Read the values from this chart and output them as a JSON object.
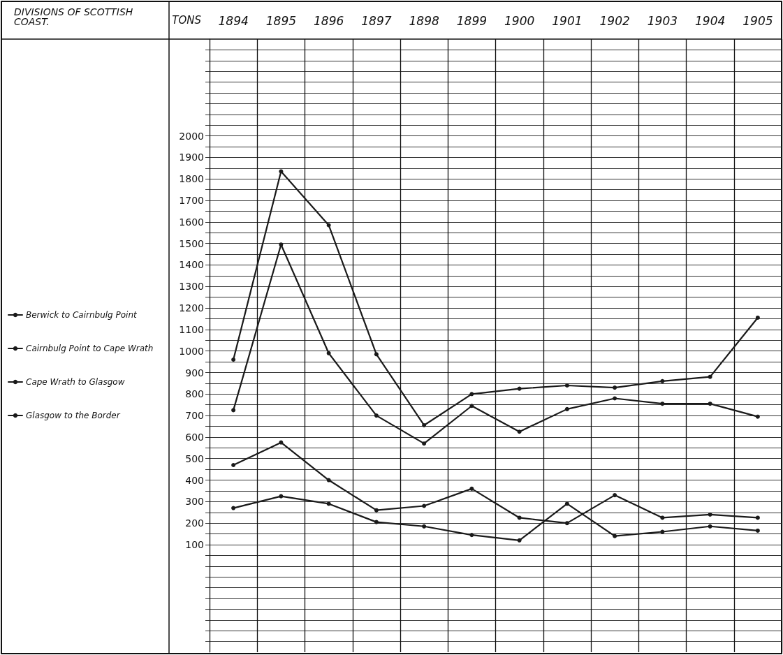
{
  "chart_data": {
    "type": "line",
    "legend_title": "DIVISIONS OF SCOTTISH COAST.",
    "ylabel": "TONS",
    "categories": [
      "1894",
      "1895",
      "1896",
      "1897",
      "1898",
      "1899",
      "1900",
      "1901",
      "1902",
      "1903",
      "1904",
      "1905"
    ],
    "series": [
      {
        "name": "Berwick to Cairnbulg Point",
        "color": "#1a1a1a",
        "values": [
          960,
          1835,
          1585,
          985,
          655,
          800,
          825,
          840,
          830,
          860,
          880,
          1155
        ]
      },
      {
        "name": "Cairnbulg Point to Cape Wrath",
        "color": "#1a1a1a",
        "values": [
          725,
          1495,
          990,
          700,
          570,
          745,
          625,
          730,
          780,
          755,
          755,
          695
        ]
      },
      {
        "name": "Cape Wrath to Glasgow",
        "color": "#1a1a1a",
        "values": [
          470,
          575,
          400,
          260,
          280,
          360,
          225,
          200,
          330,
          225,
          240,
          225
        ]
      },
      {
        "name": "Glasgow to the Border",
        "color": "#1a1a1a",
        "values": [
          270,
          325,
          290,
          205,
          185,
          145,
          120,
          290,
          140,
          160,
          185,
          165
        ]
      }
    ],
    "ylim": [
      -400,
      2450
    ],
    "yticks": [
      {
        "value": -350,
        "label": null
      },
      {
        "value": -300,
        "label": null
      },
      {
        "value": -250,
        "label": null
      },
      {
        "value": -200,
        "label": null
      },
      {
        "value": -150,
        "label": null
      },
      {
        "value": -100,
        "label": null
      },
      {
        "value": -50,
        "label": null
      },
      {
        "value": 0,
        "label": null
      },
      {
        "value": 50,
        "label": null
      },
      100,
      {
        "value": 150,
        "label": null
      },
      200,
      {
        "value": 250,
        "label": null
      },
      300,
      {
        "value": 350,
        "label": null
      },
      400,
      {
        "value": 450,
        "label": null
      },
      500,
      {
        "value": 550,
        "label": null
      },
      600,
      {
        "value": 650,
        "label": null
      },
      700,
      {
        "value": 750,
        "label": null
      },
      800,
      {
        "value": 850,
        "label": null
      },
      900,
      {
        "value": 950,
        "label": null
      },
      1000,
      {
        "value": 1050,
        "label": null
      },
      1100,
      {
        "value": 1150,
        "label": null
      },
      1200,
      {
        "value": 1250,
        "label": null
      },
      1300,
      {
        "value": 1350,
        "label": null
      },
      1400,
      {
        "value": 1450,
        "label": null
      },
      1500,
      {
        "value": 1550,
        "label": null
      },
      1600,
      {
        "value": 1650,
        "label": null
      },
      1700,
      {
        "value": 1750,
        "label": null
      },
      1800,
      {
        "value": 1850,
        "label": null
      },
      1900,
      {
        "value": 1950,
        "label": null
      },
      2000,
      {
        "value": 2050,
        "label": null
      },
      {
        "value": 2100,
        "label": null
      },
      {
        "value": 2150,
        "label": null
      },
      {
        "value": 2200,
        "label": null
      },
      {
        "value": 2250,
        "label": null
      },
      {
        "value": 2300,
        "label": null
      },
      {
        "value": 2350,
        "label": null
      },
      {
        "value": 2400,
        "label": null
      }
    ],
    "grid": true,
    "legend": "left",
    "marker": "circle",
    "line_style": "solid"
  }
}
